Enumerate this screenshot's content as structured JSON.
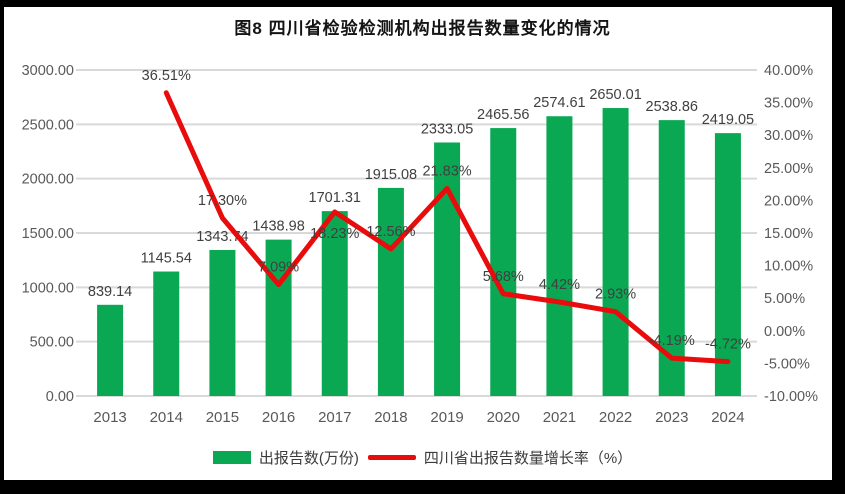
{
  "figure": {
    "title": "图8  四川省检验检测机构出报告数量变化的情况",
    "legend": [
      {
        "label": "出报告数(万份)",
        "swatch": "bar"
      },
      {
        "label": "四川省出报告数量增长率（%）",
        "swatch": "line"
      }
    ]
  },
  "colors": {
    "bar": "#0aa852",
    "line": "#e80c0c",
    "grid": "#d9d9d9",
    "axis_text": "#595959",
    "data_label": "#404040",
    "title": "#141414",
    "frame": "#000000",
    "background": "#ffffff"
  },
  "chart_data": {
    "type": "bar",
    "title": "图8  四川省检验检测机构出报告数量变化的情况",
    "categories": [
      "2013",
      "2014",
      "2015",
      "2016",
      "2017",
      "2018",
      "2019",
      "2020",
      "2021",
      "2022",
      "2023",
      "2024"
    ],
    "series": [
      {
        "name": "出报告数(万份)",
        "type": "bar",
        "axis": "left",
        "values": [
          839.14,
          1145.54,
          1343.74,
          1438.98,
          1701.31,
          1915.08,
          2333.05,
          2465.56,
          2574.61,
          2650.01,
          2538.86,
          2419.05
        ],
        "labels": [
          "839.14",
          "1145.54",
          "1343.74",
          "1438.98",
          "1701.31",
          "1915.08",
          "2333.05",
          "2465.56",
          "2574.61",
          "2650.01",
          "2538.86",
          "2419.05"
        ]
      },
      {
        "name": "四川省出报告数量增长率（%）",
        "type": "line",
        "axis": "right",
        "values": [
          null,
          36.51,
          17.3,
          7.09,
          18.23,
          12.56,
          21.83,
          5.68,
          4.42,
          2.93,
          -4.19,
          -4.72
        ],
        "labels": [
          null,
          "36.51%",
          "17.30%",
          "7.09%",
          "18.23%",
          "12.56%",
          "21.83%",
          "5.68%",
          "4.42%",
          "2.93%",
          "-4.19%",
          "-4.72%"
        ],
        "label_below_indices": [
          4
        ]
      }
    ],
    "left_axis": {
      "min": 0,
      "max": 3000,
      "step": 500,
      "tick_labels": [
        "0.00",
        "500.00",
        "1000.00",
        "1500.00",
        "2000.00",
        "2500.00",
        "3000.00"
      ]
    },
    "right_axis": {
      "min": -10,
      "max": 40,
      "step": 5,
      "tick_labels": [
        "-10.00%",
        "-5.00%",
        "0.00%",
        "5.00%",
        "10.00%",
        "15.00%",
        "20.00%",
        "25.00%",
        "30.00%",
        "35.00%",
        "40.00%"
      ]
    },
    "grid": true,
    "legend_position": "bottom",
    "xlabel": "",
    "ylabel": ""
  }
}
